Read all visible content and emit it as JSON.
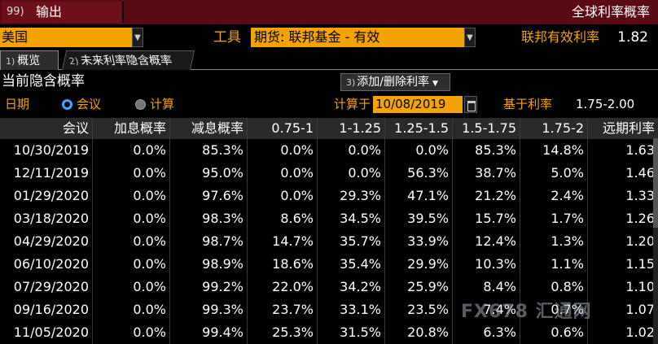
{
  "topbar": {
    "output_num": "99)",
    "output_label": "输出",
    "title": "全球利率概率"
  },
  "selectors": {
    "country": "美国",
    "tool_label": "工具",
    "tool_value": "期货: 联邦基金 - 有效",
    "effective_rate_label": "联邦有效利率",
    "effective_rate_value": "1.82"
  },
  "tabs": [
    {
      "num": "1)",
      "label": "概览"
    },
    {
      "num": "2)",
      "label": "未来利率隐含概率"
    }
  ],
  "section": {
    "title": "当前隐含概率",
    "add_remove_num": "3)",
    "add_remove_label": "添加/删除利率"
  },
  "date_options": {
    "label": "日期",
    "option_meeting": "会议",
    "option_calc": "计算",
    "calc_on_label": "计算于",
    "calc_date": "10/08/2019",
    "base_rate_label": "基于利率",
    "base_rate_value": "1.75-2.00"
  },
  "table": {
    "headers": [
      "会议",
      "加息概率",
      "减息概率",
      "0.75-1",
      "1-1.25",
      "1.25-1.5",
      "1.5-1.75",
      "1.75-2",
      "远期利率"
    ],
    "rows": [
      [
        "10/30/2019",
        "0.0%",
        "85.3%",
        "0.0%",
        "0.0%",
        "0.0%",
        "85.3%",
        "14.8%",
        "1.63"
      ],
      [
        "12/11/2019",
        "0.0%",
        "95.0%",
        "0.0%",
        "0.0%",
        "56.3%",
        "38.7%",
        "5.0%",
        "1.46"
      ],
      [
        "01/29/2020",
        "0.0%",
        "97.6%",
        "0.0%",
        "29.3%",
        "47.1%",
        "21.2%",
        "2.4%",
        "1.33"
      ],
      [
        "03/18/2020",
        "0.0%",
        "98.3%",
        "8.6%",
        "34.5%",
        "39.5%",
        "15.7%",
        "1.7%",
        "1.26"
      ],
      [
        "04/29/2020",
        "0.0%",
        "98.7%",
        "14.7%",
        "35.7%",
        "33.9%",
        "12.4%",
        "1.3%",
        "1.20"
      ],
      [
        "06/10/2020",
        "0.0%",
        "98.9%",
        "18.6%",
        "35.4%",
        "29.9%",
        "10.3%",
        "1.1%",
        "1.15"
      ],
      [
        "07/29/2020",
        "0.0%",
        "99.2%",
        "22.0%",
        "34.2%",
        "25.9%",
        "8.4%",
        "0.8%",
        "1.10"
      ],
      [
        "09/16/2020",
        "0.0%",
        "99.3%",
        "23.7%",
        "33.1%",
        "23.5%",
        "7.4%",
        "0.7%",
        "1.07"
      ],
      [
        "11/05/2020",
        "0.0%",
        "99.4%",
        "25.3%",
        "31.5%",
        "20.8%",
        "6.3%",
        "0.6%",
        "1.02"
      ]
    ]
  },
  "watermark": "FX678 汇通网",
  "colors": {
    "accent": "#f5a300",
    "topbar_bg": "#5a0a12",
    "radio_selected": "#4aa3ff"
  }
}
